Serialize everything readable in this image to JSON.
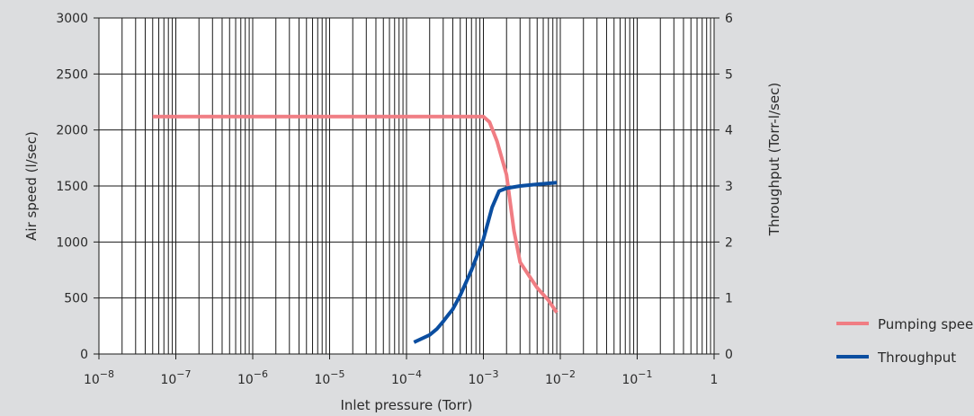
{
  "chart_data": {
    "type": "line",
    "xlabel": "Inlet pressure (Torr)",
    "ylabel": "Air speed (l/sec)",
    "y2label": "Throughput (Torr-l/sec)",
    "x_scale": "log",
    "xlim": [
      1e-08,
      1
    ],
    "ylim": [
      0,
      3000
    ],
    "y2lim": [
      0,
      6
    ],
    "x_ticks": [
      {
        "base": "10",
        "exp": "−8"
      },
      {
        "base": "10",
        "exp": "−7"
      },
      {
        "base": "10",
        "exp": "−6"
      },
      {
        "base": "10",
        "exp": "−5"
      },
      {
        "base": "10",
        "exp": "−4"
      },
      {
        "base": "10",
        "exp": "−3"
      },
      {
        "base": "10",
        "exp": "−2"
      },
      {
        "base": "10",
        "exp": "−1"
      },
      {
        "base": "1",
        "exp": ""
      }
    ],
    "y_ticks": [
      "0",
      "500",
      "1000",
      "1500",
      "2000",
      "2500",
      "3000"
    ],
    "y2_ticks": [
      "0",
      "1",
      "2",
      "3",
      "4",
      "5",
      "6"
    ],
    "grid": true,
    "legend_position": "bottom-right",
    "series": [
      {
        "name": "Pumping speed",
        "axis": "left",
        "color": "#f07d83",
        "x": [
          5e-08,
          1e-07,
          1e-06,
          1e-05,
          0.0001,
          0.0005,
          0.001,
          0.0012,
          0.0015,
          0.002,
          0.0025,
          0.003,
          0.004,
          0.005,
          0.007,
          0.009
        ],
        "y": [
          2120,
          2120,
          2120,
          2120,
          2120,
          2120,
          2120,
          2070,
          1900,
          1600,
          1100,
          820,
          690,
          590,
          480,
          370
        ]
      },
      {
        "name": "Throughput",
        "axis": "right",
        "color": "#0b4ea0",
        "x": [
          0.000125,
          0.0002,
          0.00025,
          0.0003,
          0.00035,
          0.0004,
          0.0005,
          0.0007,
          0.001,
          0.0013,
          0.0016,
          0.002,
          0.003,
          0.005,
          0.009
        ],
        "y": [
          0.21,
          0.34,
          0.45,
          0.58,
          0.7,
          0.8,
          1.05,
          1.5,
          2.05,
          2.62,
          2.91,
          2.96,
          3.0,
          3.03,
          3.06
        ]
      }
    ]
  }
}
